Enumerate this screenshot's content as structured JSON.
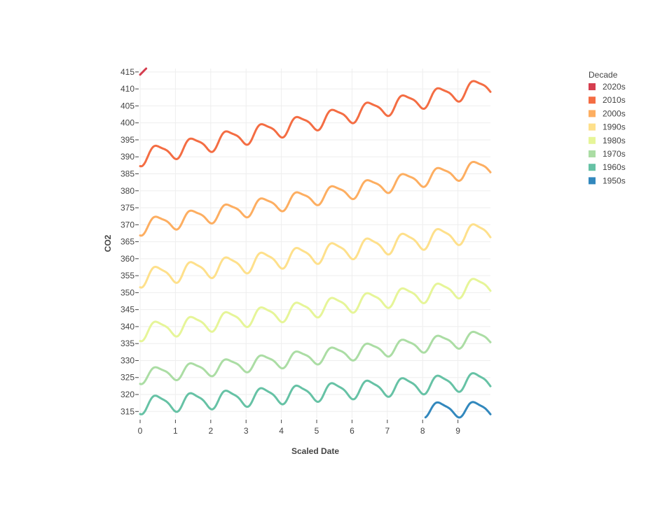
{
  "chart_data": {
    "type": "line",
    "xlabel": "Scaled Date",
    "ylabel": "CO2",
    "xlim": [
      0,
      9.92
    ],
    "ylim": [
      313,
      416
    ],
    "x_ticks": [
      0,
      1,
      2,
      3,
      4,
      5,
      6,
      7,
      8,
      9
    ],
    "y_ticks": [
      315,
      320,
      325,
      330,
      335,
      340,
      345,
      350,
      355,
      360,
      365,
      370,
      375,
      380,
      385,
      390,
      395,
      400,
      405,
      410,
      415
    ],
    "grid": true,
    "legend": {
      "title": "Decade",
      "placement": "right"
    },
    "series": [
      {
        "name": "2020s",
        "color": "#d53e4f",
        "x_start": 0,
        "x_end": 0.17,
        "base_start": 414.2,
        "base_end": 416.0,
        "amp": 0
      },
      {
        "name": "2010s",
        "color": "#f46d43",
        "x_start": 0,
        "x_end": 9.92,
        "base_start": 390.0,
        "base_end": 411.0,
        "amp": 3.0
      },
      {
        "name": "2000s",
        "color": "#fdae61",
        "x_start": 0,
        "x_end": 9.92,
        "base_start": 369.4,
        "base_end": 387.2,
        "amp": 2.8
      },
      {
        "name": "1990s",
        "color": "#fee08b",
        "x_start": 0,
        "x_end": 9.92,
        "base_start": 354.5,
        "base_end": 368.3,
        "amp": 3.2
      },
      {
        "name": "1980s",
        "color": "#e6f598",
        "x_start": 0,
        "x_end": 9.92,
        "base_start": 338.5,
        "base_end": 352.4,
        "amp": 3.0
      },
      {
        "name": "1970s",
        "color": "#abdda4",
        "x_start": 0,
        "x_end": 9.92,
        "base_start": 325.5,
        "base_end": 337.0,
        "amp": 2.6
      },
      {
        "name": "1960s",
        "color": "#66c2a5",
        "x_start": 0,
        "x_end": 9.92,
        "base_start": 317.0,
        "base_end": 324.3,
        "amp": 3.0
      },
      {
        "name": "1950s",
        "color": "#3288bd",
        "x_start": 8.08,
        "x_end": 9.92,
        "base_start": 315.6,
        "base_end": 315.8,
        "amp": 2.6
      }
    ]
  }
}
